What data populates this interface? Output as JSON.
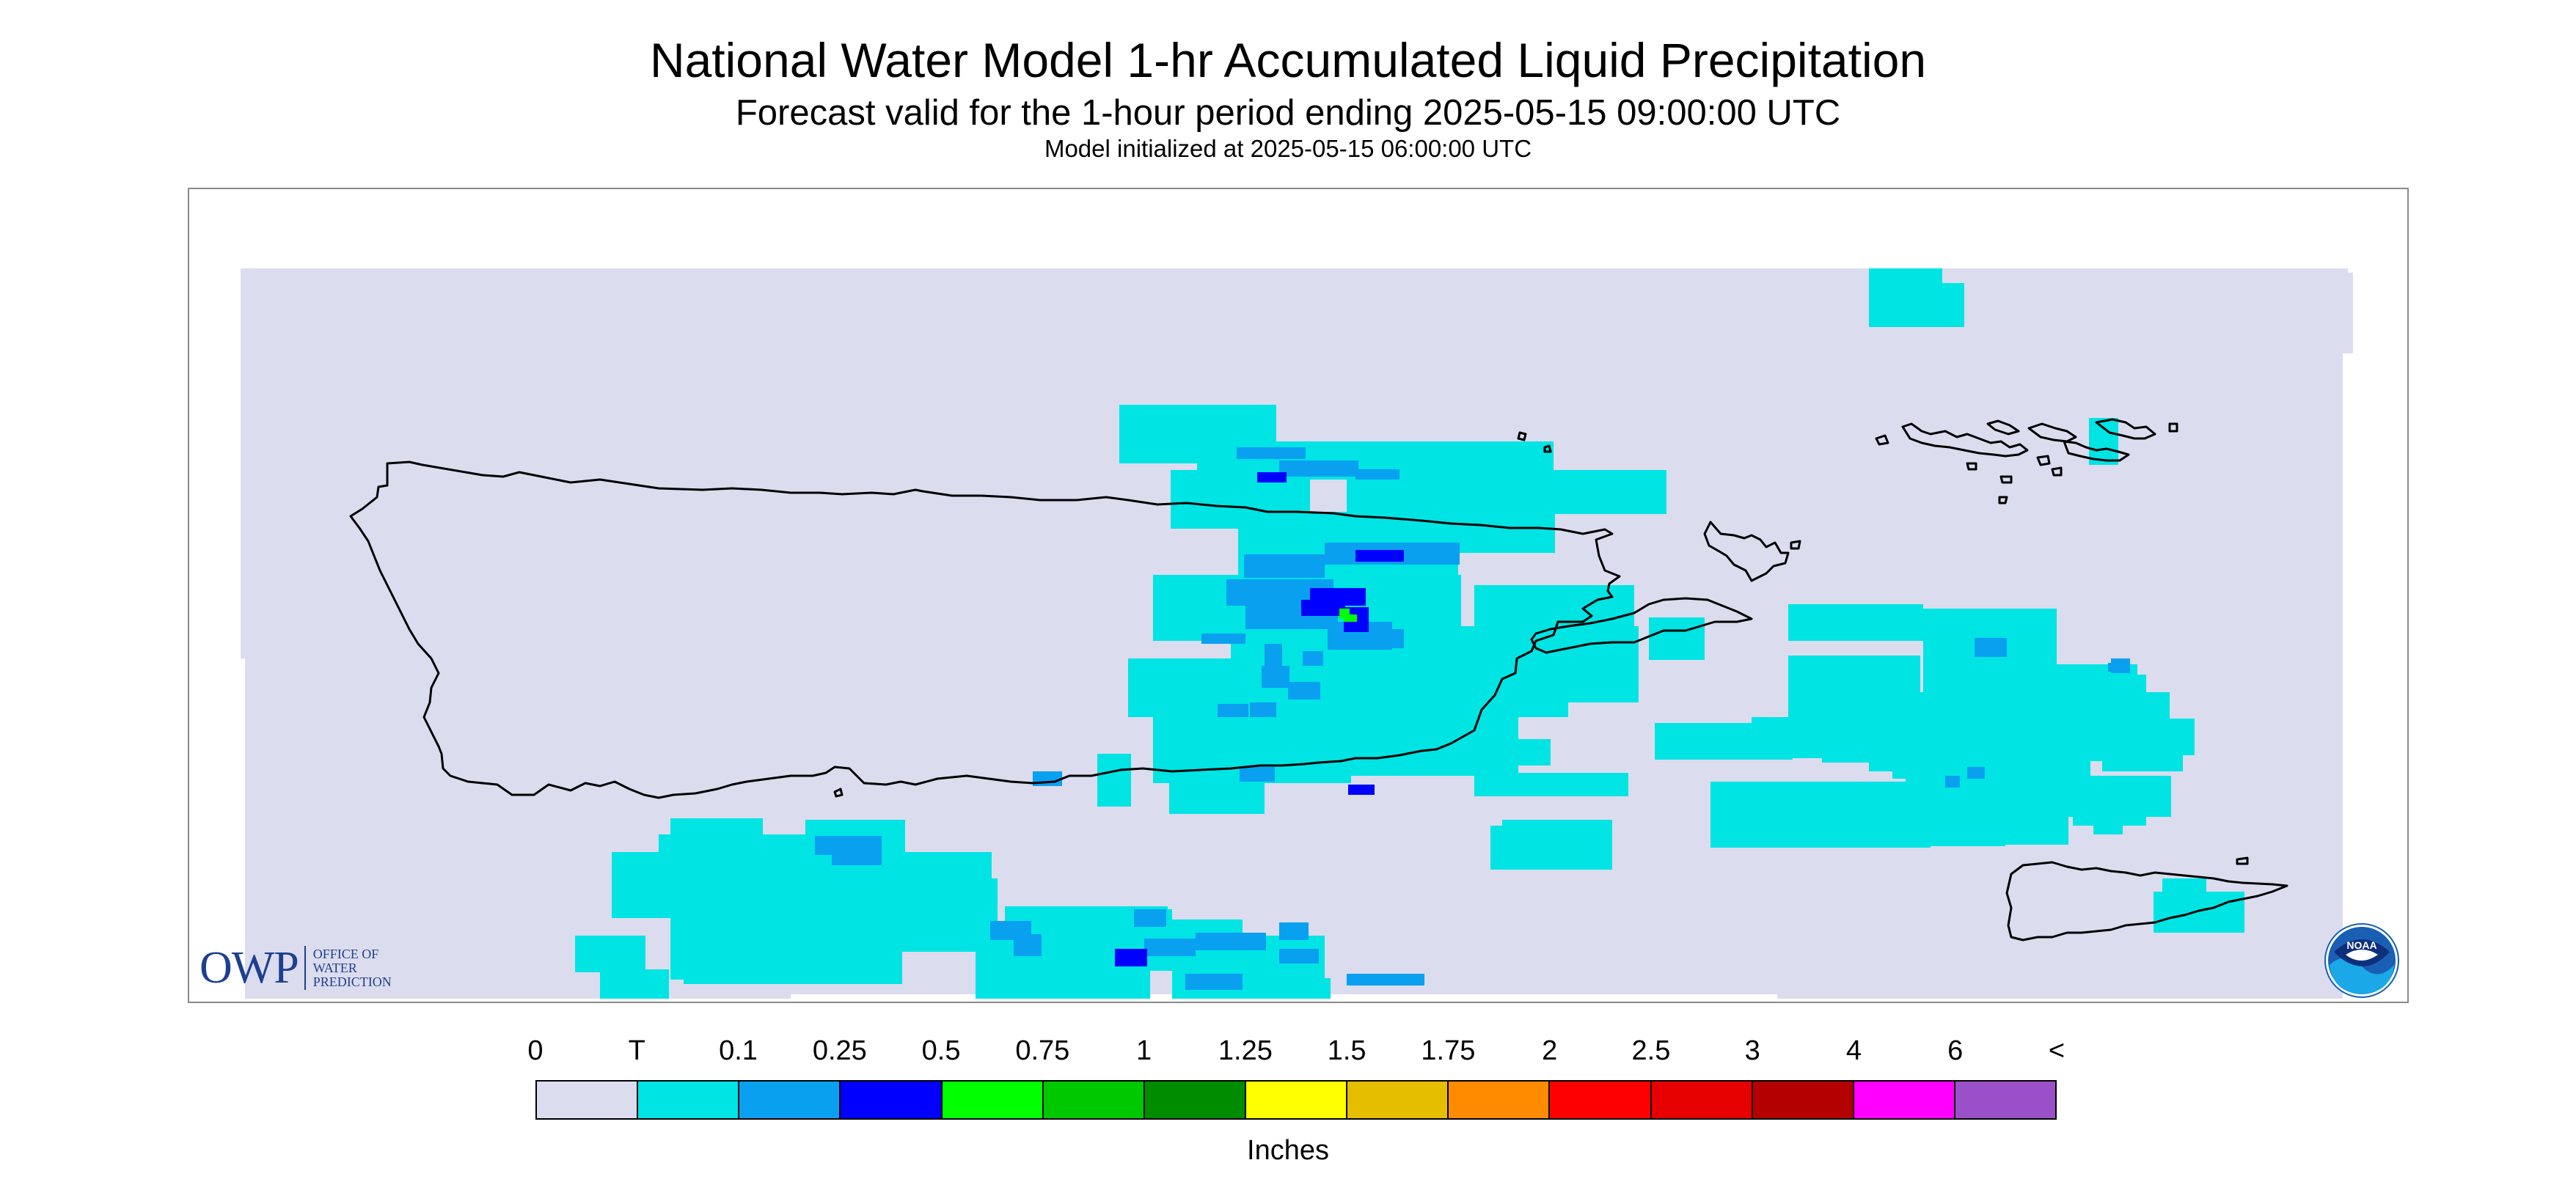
{
  "header": {
    "title": "National Water Model 1-hr Accumulated Liquid Precipitation",
    "subtitle": "Forecast valid for the 1-hour period ending 2025-05-15 09:00:00 UTC",
    "init_line": "Model initialized at 2025-05-15 06:00:00 UTC"
  },
  "map": {
    "region": "Puerto Rico and U.S. Virgin Islands",
    "background_color": "#dcdcef",
    "coastline_color": "#000000",
    "precip_areas": [
      {
        "level": "T",
        "color": "#00e4e4",
        "location": "central-east Puerto Rico"
      },
      {
        "level": "0.1",
        "color": "#0aa0f0",
        "location": "central-east Puerto Rico"
      },
      {
        "level": "0.25",
        "color": "#0000ff",
        "location": "central-east Puerto Rico"
      },
      {
        "level": "0.5",
        "color": "#00ff00",
        "location": "central-east Puerto Rico"
      },
      {
        "level": "T",
        "color": "#00e4e4",
        "location": "Vieques / offshore southeast"
      },
      {
        "level": "T",
        "color": "#00e4e4",
        "location": "south offshore"
      },
      {
        "level": "T",
        "color": "#00e4e4",
        "location": "St. Thomas / St. John"
      }
    ]
  },
  "legend": {
    "labels": [
      "0",
      "T",
      "0.1",
      "0.25",
      "0.5",
      "0.75",
      "1",
      "1.25",
      "1.5",
      "1.75",
      "2",
      "2.5",
      "3",
      "4",
      "6",
      "<"
    ],
    "colors": [
      "#dcdcef",
      "#00e4e4",
      "#0aa0f0",
      "#0000ff",
      "#00ff00",
      "#00c800",
      "#008c00",
      "#ffff00",
      "#e6be00",
      "#ff8c00",
      "#ff0000",
      "#e60000",
      "#b40000",
      "#ff00ff",
      "#9a50c8"
    ],
    "units": "Inches"
  },
  "logos": {
    "owp_word": "OWP",
    "owp_sub": [
      "OFFICE OF",
      "WATER",
      "PREDICTION"
    ],
    "noaa": "NOAA"
  }
}
